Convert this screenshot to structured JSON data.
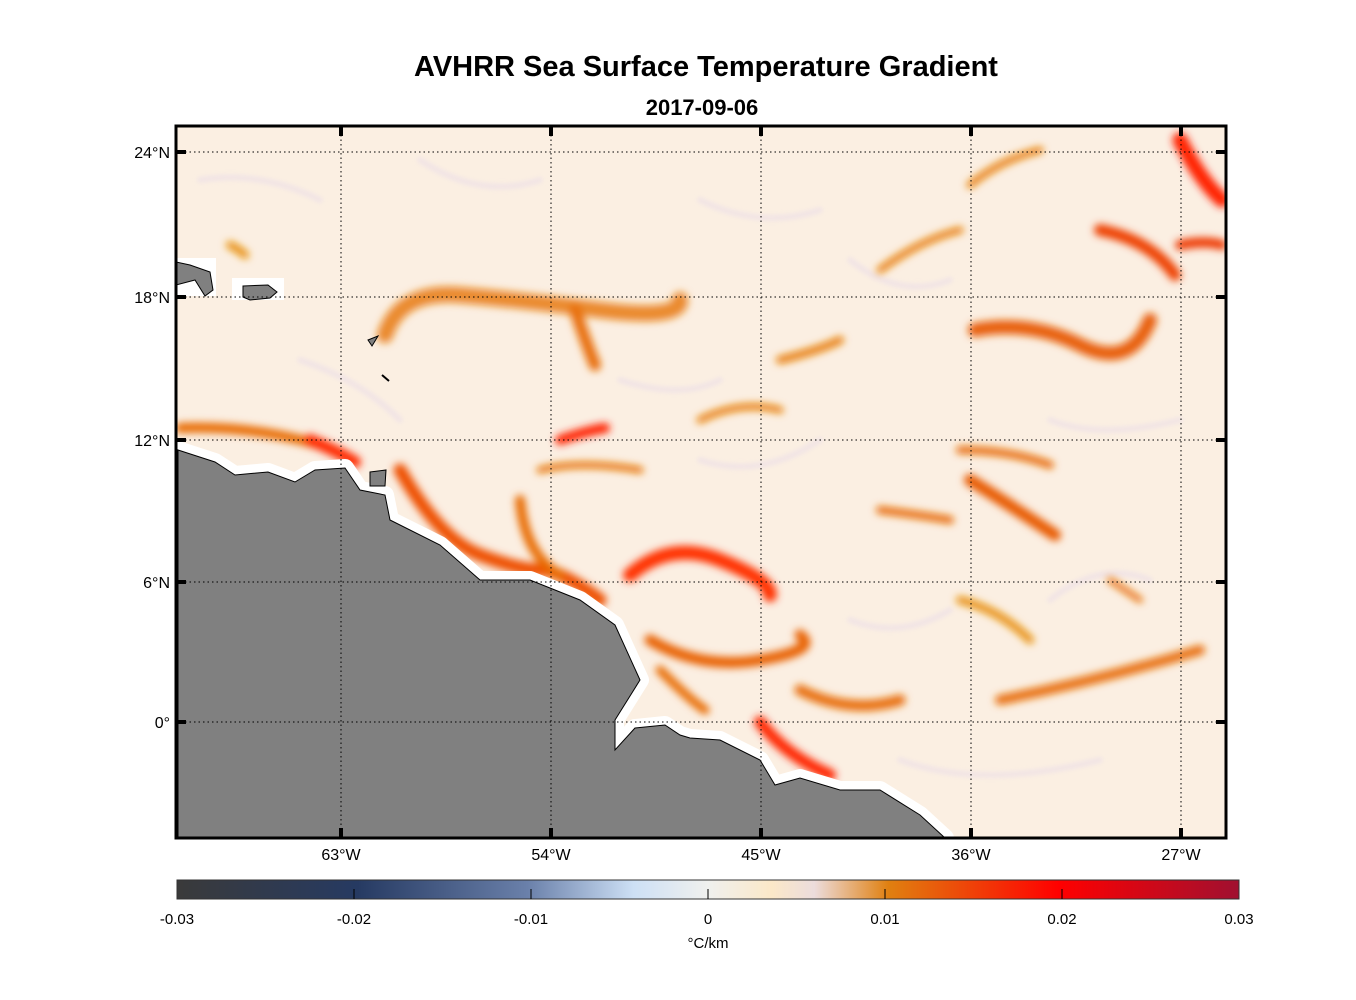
{
  "title": "AVHRR Sea Surface Temperature Gradient",
  "subtitle": "2017-09-06",
  "lat_labels": [
    "24°N",
    "18°N",
    "12°N",
    "6°N",
    "0°"
  ],
  "lon_labels": [
    "63°W",
    "54°W",
    "45°W",
    "36°W",
    "27°W"
  ],
  "colorbar": {
    "ticks": [
      "-0.03",
      "-0.02",
      "-0.01",
      "0",
      "0.01",
      "0.02",
      "0.03"
    ],
    "unit": "°C/km",
    "range": [
      -0.03,
      0.03
    ]
  },
  "colors": {
    "land": "#808080",
    "ocean_base": "#fbefe2",
    "front": "#e86a00",
    "strong_front": "#ff1a00"
  }
}
